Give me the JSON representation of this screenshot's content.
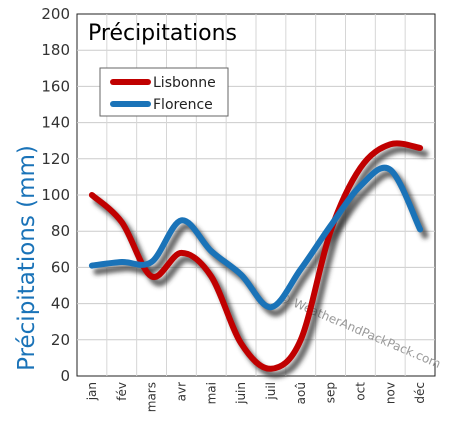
{
  "chart_data": {
    "type": "line",
    "title": "Précipitations",
    "ylabel": "Précipitations (mm)",
    "xlabel": "",
    "categories": [
      "jan",
      "fév",
      "mars",
      "avr",
      "mai",
      "juin",
      "juil",
      "aoû",
      "sep",
      "oct",
      "nov",
      "déc"
    ],
    "ylim": [
      0,
      200
    ],
    "yticks": [
      0,
      20,
      40,
      60,
      80,
      100,
      120,
      140,
      160,
      180,
      200
    ],
    "grid": true,
    "legend_position": "top-left",
    "series": [
      {
        "name": "Lisbonne",
        "color": "#c00000",
        "values": [
          100,
          85,
          55,
          68,
          55,
          18,
          4,
          20,
          80,
          115,
          128,
          126
        ]
      },
      {
        "name": "Florence",
        "color": "#1a73b8",
        "values": [
          61,
          63,
          63,
          86,
          69,
          56,
          38,
          59,
          83,
          105,
          114,
          81
        ]
      }
    ],
    "watermark": "© WeatherAndPackPack.com"
  }
}
